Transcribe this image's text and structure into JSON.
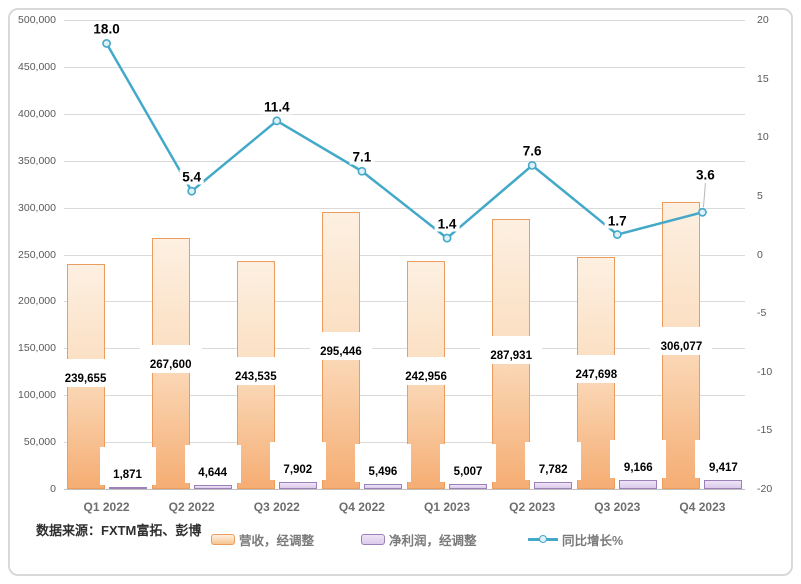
{
  "source_note": "数据来源：FXTM富拓、彭博",
  "legend": {
    "items": [
      {
        "label": "营收，经调整",
        "swatch": "orange-bar"
      },
      {
        "label": "净利润，经调整",
        "swatch": "purple-bar"
      },
      {
        "label": "同比增长%",
        "swatch": "teal-line"
      }
    ]
  },
  "colors": {
    "revenue_bar_border": "#ec9c5c",
    "revenue_bar_fill_top": "#fdf0e2",
    "revenue_bar_fill_bottom": "#f5ad73",
    "profit_bar_border": "#9c80b8",
    "profit_bar_fill": "#dccaeb",
    "growth_line": "#44a9c9",
    "gridline": "#dadada",
    "axis_text": "#595959",
    "label_text": "#000000"
  },
  "chart_data": {
    "type": "combo-bar-line",
    "categories": [
      "Q1 2022",
      "Q2 2022",
      "Q3 2022",
      "Q4 2022",
      "Q1 2023",
      "Q2 2023",
      "Q3 2023",
      "Q4 2023"
    ],
    "series": [
      {
        "name": "营收，经调整",
        "chart": "bar",
        "axis": "left",
        "values": [
          239655,
          267600,
          243535,
          295446,
          242956,
          287931,
          247698,
          306077
        ],
        "labels": [
          "239,655",
          "267,600",
          "243,535",
          "295,446",
          "242,956",
          "287,931",
          "247,698",
          "306,077"
        ]
      },
      {
        "name": "净利润，经调整",
        "chart": "bar",
        "axis": "left",
        "values": [
          1871,
          4644,
          7902,
          5496,
          5007,
          7782,
          9166,
          9417
        ],
        "labels": [
          "1,871",
          "4,644",
          "7,902",
          "5,496",
          "5,007",
          "7,782",
          "9,166",
          "9,417"
        ]
      },
      {
        "name": "同比增长%",
        "chart": "line",
        "axis": "right",
        "values": [
          18.0,
          5.4,
          11.4,
          7.1,
          1.4,
          7.6,
          1.7,
          3.6
        ],
        "labels": [
          "18.0",
          "5.4",
          "11.4",
          "7.1",
          "1.4",
          "7.6",
          "1.7",
          "3.6"
        ]
      }
    ],
    "left_axis": {
      "min": 0,
      "max": 500000,
      "step": 50000,
      "ticks": [
        "500,000",
        "450,000",
        "400,000",
        "350,000",
        "300,000",
        "250,000",
        "200,000",
        "150,000",
        "100,000",
        "50,000",
        "0"
      ]
    },
    "right_axis": {
      "min": -20,
      "max": 20,
      "step": 5,
      "ticks": [
        "20",
        "15",
        "10",
        "5",
        "0",
        "-5",
        "-10",
        "-15",
        "-20"
      ]
    },
    "grid": "horizontal-only",
    "legend_position": "bottom"
  }
}
